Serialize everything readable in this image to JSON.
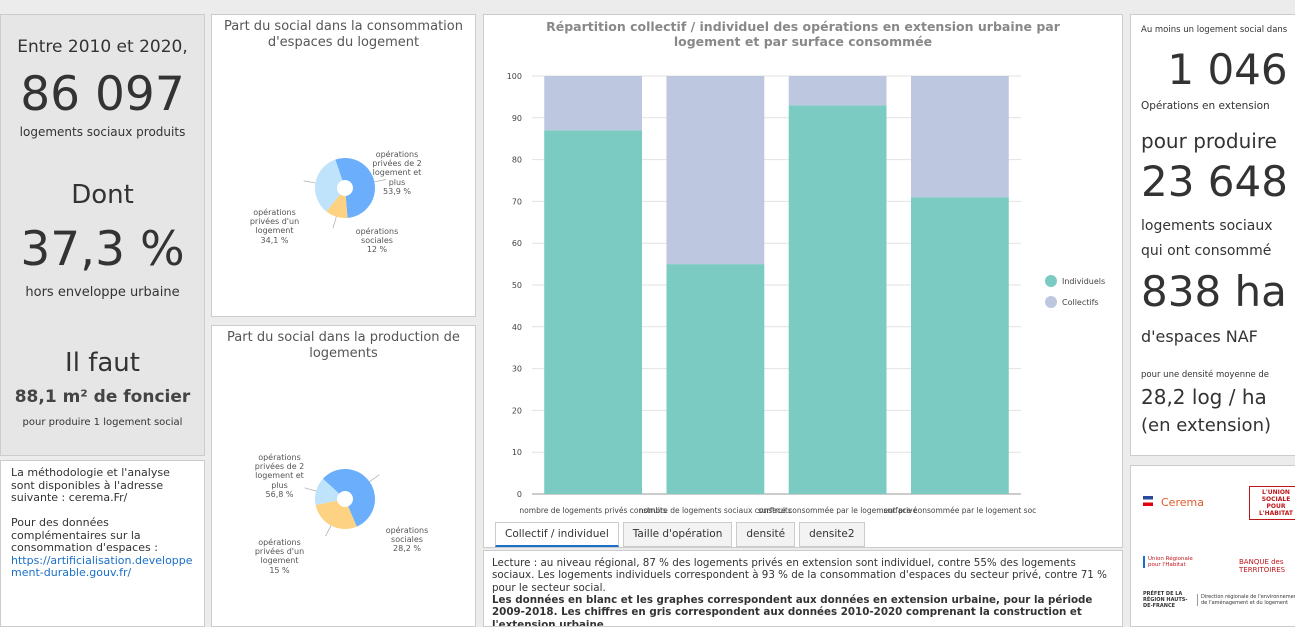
{
  "left_panel": {
    "intro": "Entre 2010 et 2020,",
    "total": "86 097",
    "total_caption": "logements sociaux produits",
    "dont": "Dont",
    "share": "37,3 %",
    "share_caption": "hors enveloppe urbaine",
    "il_faut": "Il faut",
    "foncier": "88,1 m² de foncier",
    "foncier_caption": "pour produire 1 logement social"
  },
  "methodology": {
    "text": "La méthodologie et l'analyse sont disponibles à l'adresse suivante : cerema.Fr/",
    "extra": "Pour des données complémentaires sur la consommation d'espaces :",
    "link": "https://artificialisation.developpement-durable.gouv.fr/"
  },
  "pie_consumption": {
    "type": "pie",
    "title": "Part du social dans la consommation d'espaces du logement",
    "slices": [
      {
        "name": "opérations privées de 2 logement et plus",
        "value": 53.9,
        "value_label": "53,9 %",
        "color": "#6aaefc"
      },
      {
        "name": "opérations sociales",
        "value": 12,
        "value_label": "12 %",
        "color": "#fdd282"
      },
      {
        "name": "opérations privées d'un logement",
        "value": 34.1,
        "value_label": "34,1 %",
        "color": "#bfe3fa"
      }
    ]
  },
  "pie_production": {
    "type": "pie",
    "title": "Part du social dans la production de logements",
    "slices": [
      {
        "name": "opérations privées de 2 logement et plus",
        "value": 56.8,
        "value_label": "56,8 %",
        "color": "#6aaefc"
      },
      {
        "name": "opérations sociales",
        "value": 28.2,
        "value_label": "28,2 %",
        "color": "#fdd282"
      },
      {
        "name": "opérations privées d'un logement",
        "value": 15,
        "value_label": "15 %",
        "color": "#bfe3fa"
      }
    ]
  },
  "bar_chart": {
    "type": "bar",
    "title": "Répartition collectif / individuel des opérations en extension urbaine par logement et par surface consommée",
    "categories": [
      "nombre de logements privés construits",
      "nombre de logements sociaux construits",
      "surface consommée par le logement privé",
      "surface consommée par le logement soc"
    ],
    "series": [
      {
        "name": "Individuels",
        "color": "#7ccbc3",
        "values": [
          87,
          55,
          93,
          71
        ]
      },
      {
        "name": "Collectifs",
        "color": "#bdc8e0",
        "values": [
          13,
          45,
          7,
          29
        ]
      }
    ],
    "ylim": [
      0,
      100
    ],
    "yticks": [
      0,
      10,
      20,
      30,
      40,
      50,
      60,
      70,
      80,
      90,
      100
    ],
    "grid": true
  },
  "tabs": [
    "Collectif / individuel",
    "Taille d'opération",
    "densité",
    "densite2"
  ],
  "lecture": {
    "text": "Lecture : au niveau régional, 87 % des logements privés en extension sont individuel, contre 55% des logements sociaux. Les logements individuels correspondent à 93 % de la consommation d'espaces du secteur privé, contre 71 % pour le secteur social.",
    "bold": "Les données en blanc et les graphes correspondent aux données en extension urbaine, pour la période 2009-2018. Les chiffres en gris correspondent aux données 2010-2020 comprenant la construction et l'extension urbaine."
  },
  "right_panel": {
    "line1": "Au moins un logement social dans",
    "ops": "1 046",
    "ops_caption": "Opérations en extension",
    "pour": "pour produire",
    "logements": "23 648",
    "log_caption1": "logements sociaux",
    "log_caption2": "qui ont consommé",
    "ha": "838 ha",
    "ha_caption": "d'espaces NAF",
    "density_caption": "pour une densité moyenne de",
    "density": "28,2 log / ha",
    "ext": "(en extension)"
  },
  "logos": {
    "cerema": "Cerema",
    "ush": "L'UNION SOCIALE POUR L'HABITAT",
    "urh": "Union Régionale pour l'Habitat",
    "banque": "BANQUE des TERRITOIRES",
    "prefet": "PRÉFET DE LA RÉGION HAUTS-DE-FRANCE",
    "dreal": "Direction régionale de l'environnement de l'aménagement et du logement"
  }
}
